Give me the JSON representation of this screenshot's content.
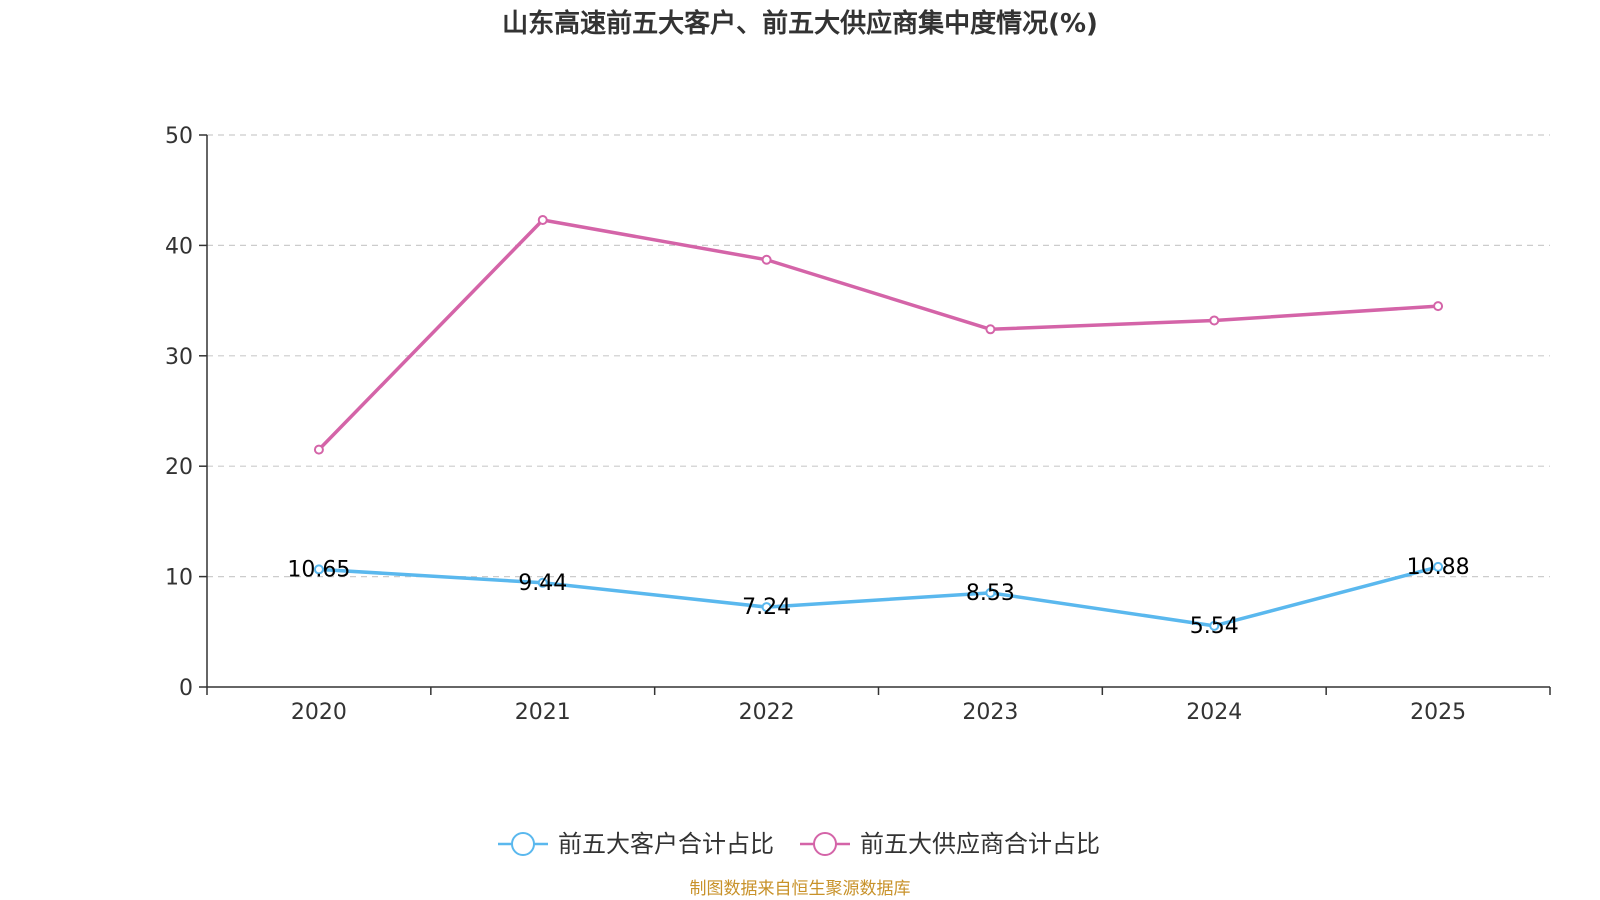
{
  "colors": {
    "customer": "#5ab8ee",
    "supplier": "#d464a8",
    "axis": "#333333",
    "grid": "#cccccc",
    "source": "#c8922a"
  },
  "source_note": "制图数据来自恒生聚源数据库",
  "chart_data": {
    "type": "line",
    "title": "山东高速前五大客户、前五大供应商集中度情况(%)",
    "xlabel": "",
    "ylabel": "",
    "categories": [
      "2020",
      "2021",
      "2022",
      "2023",
      "2024",
      "2025"
    ],
    "ylim": [
      0,
      50
    ],
    "yticks": [
      0,
      10,
      20,
      30,
      40,
      50
    ],
    "grid": true,
    "legend_position": "bottom-center",
    "series": [
      {
        "name": "前五大客户合计占比",
        "color_key": "customer",
        "values": [
          10.65,
          9.44,
          7.24,
          8.53,
          5.54,
          10.88
        ],
        "labels": [
          "10.65",
          "9.44",
          "7.24",
          "8.53",
          "5.54",
          "10.88"
        ],
        "show_labels": true
      },
      {
        "name": "前五大供应商合计占比",
        "color_key": "supplier",
        "values": [
          21.5,
          42.3,
          38.7,
          32.4,
          33.2,
          34.5
        ],
        "show_labels": false
      }
    ]
  }
}
